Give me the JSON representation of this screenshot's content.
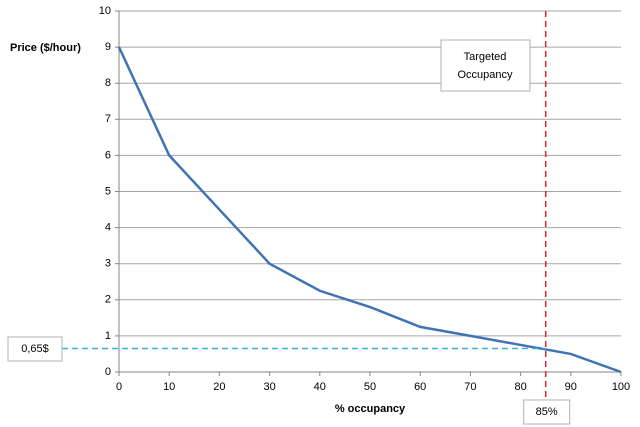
{
  "chart_data": {
    "type": "line",
    "y_label": "Price ($/hour)",
    "x_label": "% occupancy",
    "x": [
      0,
      10,
      20,
      30,
      40,
      50,
      60,
      70,
      80,
      90,
      100
    ],
    "series": [
      {
        "color": "#3f73b5",
        "values": [
          9,
          6,
          4.5,
          3,
          2.25,
          1.8,
          1.25,
          1,
          0.75,
          0.5,
          0
        ]
      }
    ],
    "xlim": [
      0,
      100
    ],
    "ylim": [
      0,
      10
    ],
    "xticks": [
      0,
      10,
      20,
      30,
      40,
      50,
      60,
      70,
      80,
      90,
      100
    ],
    "yticks": [
      0,
      1,
      2,
      3,
      4,
      5,
      6,
      7,
      8,
      9,
      10
    ],
    "grid": true,
    "reference_lines": [
      {
        "axis": "x",
        "value": 85,
        "label": "85%",
        "color": "#d9262b"
      },
      {
        "axis": "y",
        "value": 0.65,
        "label": "0,65$",
        "color": "#3fb0d6"
      }
    ],
    "annotation": {
      "lines": [
        "Targeted",
        "Occupancy"
      ],
      "color": "#d9262b"
    }
  }
}
